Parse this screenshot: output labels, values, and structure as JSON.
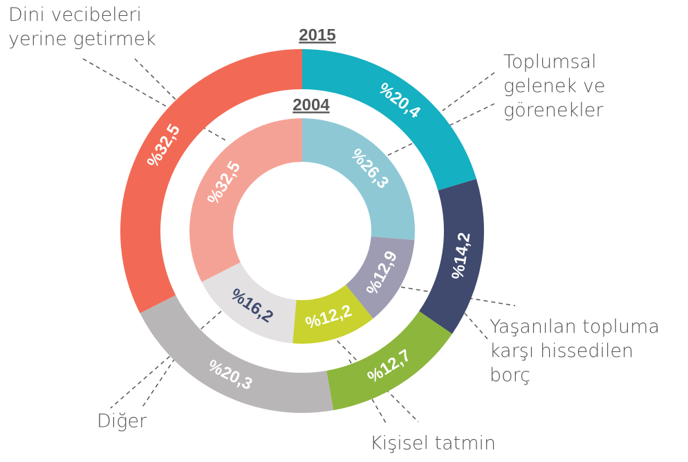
{
  "chart_data": {
    "type": "donut",
    "categories": [
      "Dini vecibeleri\nyerine getirmek",
      "Toplumsal\ngelenek ve\ngörenekler",
      "Yaşanılan topluma\nkarşı hissedilen\nborç",
      "Kişisel tatmin",
      "Diğer"
    ],
    "series": [
      {
        "name": "2015",
        "colors": [
          "#f26a55",
          "#15b0c1",
          "#3f4a6e",
          "#8cb63c",
          "#b9b6b7"
        ],
        "values": [
          32.5,
          20.4,
          14.2,
          12.7,
          20.3
        ],
        "value_labels": [
          "%32,5",
          "%20,4",
          "%14,2",
          "%12,7",
          "%20,3"
        ]
      },
      {
        "name": "2004",
        "colors": [
          "#f5a296",
          "#8ec8d4",
          "#9e9cb2",
          "#c9d22e",
          "#e3e1e2"
        ],
        "values": [
          32.5,
          26.3,
          12.9,
          12.2,
          16.2
        ],
        "value_labels": [
          "%32,5",
          "%26,3",
          "%12,9",
          "%12,2",
          "%16,2"
        ]
      }
    ]
  }
}
